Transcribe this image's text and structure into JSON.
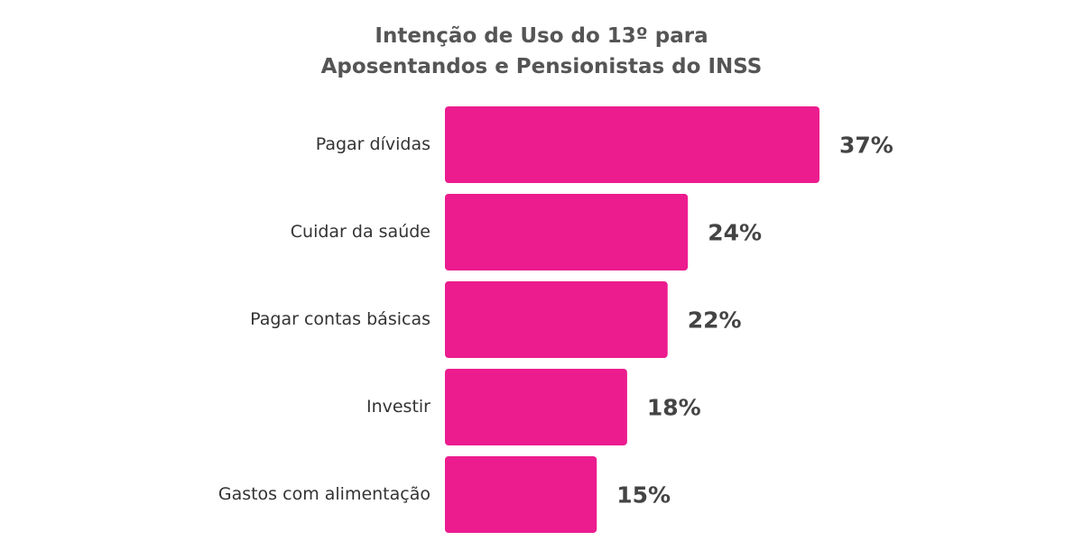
{
  "chart_data": {
    "type": "bar",
    "orientation": "horizontal",
    "title": [
      "Intenção de Uso do 13º para",
      "Aposentandos e Pensionistas do INSS"
    ],
    "categories": [
      "Pagar dívidas",
      "Cuidar da saúde",
      "Pagar contas básicas",
      "Investir",
      "Gastos com alimentação"
    ],
    "values": [
      37,
      24,
      22,
      18,
      15
    ],
    "value_labels": [
      "37%",
      "24%",
      "22%",
      "18%",
      "15%"
    ],
    "unit": "%",
    "xlim": [
      0,
      37
    ],
    "grid": false,
    "legend": "none",
    "colors": {
      "bar": "#ec1c8f",
      "title": "#555555",
      "category_text": "#333333",
      "value_text": "#444444"
    }
  }
}
